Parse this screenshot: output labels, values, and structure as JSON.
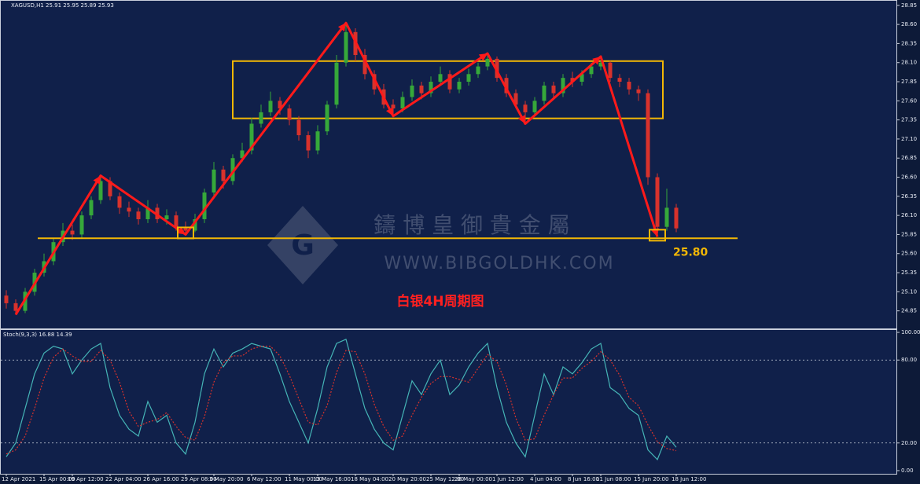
{
  "chart_data": [
    {
      "type": "candlestick",
      "title": "XAGUSD,H1 25.91 25.95 25.89 25.93",
      "up_color": "#36a83a",
      "down_color": "#d8322c",
      "categories": [
        "12 Apr 2021",
        null,
        null,
        null,
        "15 Apr 00:00",
        null,
        null,
        "19 Apr 12:00",
        null,
        null,
        null,
        "22 Apr 04:00",
        null,
        null,
        null,
        "26 Apr 16:00",
        null,
        null,
        null,
        "29 Apr 08:00",
        null,
        null,
        "3 May 20:00",
        null,
        null,
        null,
        "6 May 12:00",
        null,
        null,
        null,
        "11 May 00:00",
        null,
        null,
        "13 May 16:00",
        null,
        null,
        null,
        "18 May 04:00",
        null,
        null,
        null,
        "20 May 20:00",
        null,
        null,
        null,
        "25 May 12:00",
        null,
        null,
        "28 May 00:00",
        null,
        null,
        null,
        "1 Jun 12:00",
        null,
        null,
        null,
        "4 Jun 04:00",
        null,
        null,
        null,
        "8 Jun 16:00",
        null,
        null,
        "11 Jun 08:00",
        null,
        null,
        null,
        "15 Jun 20:00",
        null,
        null,
        null,
        "18 Jun 12:00",
        null
      ],
      "ohlc": [
        [
          25.05,
          25.12,
          24.88,
          24.95
        ],
        [
          24.95,
          25.0,
          24.8,
          24.85
        ],
        [
          24.85,
          25.15,
          24.82,
          25.1
        ],
        [
          25.1,
          25.4,
          25.05,
          25.35
        ],
        [
          25.35,
          25.6,
          25.3,
          25.5
        ],
        [
          25.5,
          25.8,
          25.45,
          25.75
        ],
        [
          25.75,
          26.0,
          25.7,
          25.9
        ],
        [
          25.9,
          25.98,
          25.78,
          25.85
        ],
        [
          25.85,
          26.15,
          25.8,
          26.1
        ],
        [
          26.1,
          26.35,
          26.05,
          26.3
        ],
        [
          26.3,
          26.62,
          26.25,
          26.55
        ],
        [
          26.55,
          26.6,
          26.3,
          26.35
        ],
        [
          26.35,
          26.4,
          26.12,
          26.2
        ],
        [
          26.2,
          26.28,
          26.08,
          26.15
        ],
        [
          26.15,
          26.2,
          25.98,
          26.05
        ],
        [
          26.05,
          26.3,
          26.0,
          26.2
        ],
        [
          26.2,
          26.25,
          26.0,
          26.05
        ],
        [
          26.05,
          26.18,
          25.98,
          26.1
        ],
        [
          26.1,
          26.15,
          25.9,
          25.95
        ],
        [
          25.95,
          26.02,
          25.85,
          25.9
        ],
        [
          25.9,
          26.12,
          25.88,
          26.05
        ],
        [
          26.05,
          26.45,
          26.0,
          26.4
        ],
        [
          26.4,
          26.8,
          26.35,
          26.7
        ],
        [
          26.7,
          26.75,
          26.45,
          26.55
        ],
        [
          26.55,
          26.9,
          26.5,
          26.85
        ],
        [
          26.85,
          27.05,
          26.8,
          26.95
        ],
        [
          26.95,
          27.38,
          26.9,
          27.3
        ],
        [
          27.3,
          27.55,
          27.25,
          27.45
        ],
        [
          27.45,
          27.72,
          27.4,
          27.6
        ],
        [
          27.6,
          27.65,
          27.42,
          27.5
        ],
        [
          27.5,
          27.55,
          27.28,
          27.35
        ],
        [
          27.35,
          27.4,
          27.08,
          27.15
        ],
        [
          27.15,
          27.2,
          26.85,
          26.95
        ],
        [
          26.95,
          27.28,
          26.9,
          27.2
        ],
        [
          27.2,
          27.6,
          27.15,
          27.55
        ],
        [
          27.55,
          28.2,
          27.5,
          28.1
        ],
        [
          28.1,
          28.62,
          28.05,
          28.5
        ],
        [
          28.5,
          28.55,
          28.12,
          28.2
        ],
        [
          28.2,
          28.28,
          27.88,
          27.95
        ],
        [
          27.95,
          28.0,
          27.68,
          27.75
        ],
        [
          27.75,
          27.82,
          27.5,
          27.55
        ],
        [
          27.55,
          27.62,
          27.4,
          27.5
        ],
        [
          27.5,
          27.72,
          27.45,
          27.65
        ],
        [
          27.65,
          27.88,
          27.6,
          27.8
        ],
        [
          27.8,
          27.85,
          27.62,
          27.7
        ],
        [
          27.7,
          27.92,
          27.65,
          27.85
        ],
        [
          27.85,
          28.05,
          27.8,
          27.95
        ],
        [
          27.95,
          28.0,
          27.7,
          27.75
        ],
        [
          27.75,
          27.9,
          27.7,
          27.85
        ],
        [
          27.85,
          28.02,
          27.8,
          27.95
        ],
        [
          27.95,
          28.1,
          27.9,
          28.05
        ],
        [
          28.05,
          28.22,
          28.0,
          28.15
        ],
        [
          28.15,
          28.18,
          27.85,
          27.9
        ],
        [
          27.9,
          27.95,
          27.65,
          27.7
        ],
        [
          27.7,
          27.75,
          27.5,
          27.55
        ],
        [
          27.55,
          27.6,
          27.3,
          27.45
        ],
        [
          27.45,
          27.65,
          27.4,
          27.6
        ],
        [
          27.6,
          27.85,
          27.55,
          27.8
        ],
        [
          27.8,
          27.85,
          27.62,
          27.7
        ],
        [
          27.7,
          27.95,
          27.65,
          27.9
        ],
        [
          27.9,
          27.98,
          27.78,
          27.85
        ],
        [
          27.85,
          28.0,
          27.8,
          27.95
        ],
        [
          27.95,
          28.1,
          27.9,
          28.05
        ],
        [
          28.05,
          28.18,
          28.0,
          28.1
        ],
        [
          28.1,
          28.12,
          27.85,
          27.9
        ],
        [
          27.9,
          27.95,
          27.78,
          27.85
        ],
        [
          27.85,
          27.9,
          27.68,
          27.75
        ],
        [
          27.75,
          27.8,
          27.6,
          27.7
        ],
        [
          27.7,
          27.75,
          26.5,
          26.6
        ],
        [
          26.6,
          26.65,
          25.82,
          25.95
        ],
        [
          25.95,
          26.45,
          25.9,
          26.2
        ],
        [
          26.2,
          26.25,
          25.88,
          25.93
        ]
      ],
      "ylim": [
        24.62,
        28.92
      ],
      "yticks": [
        28.85,
        {
          "value": 28.6,
          "label": "28.60"
        },
        28.35,
        {
          "value": 28.1,
          "label": "28.10"
        },
        27.85,
        {
          "value": 27.6,
          "label": "27.60"
        },
        27.35,
        {
          "value": 27.1,
          "label": "27.10"
        },
        26.85,
        {
          "value": 26.6,
          "label": "26.60"
        },
        26.35,
        {
          "value": 26.1,
          "label": "26.10"
        },
        25.85,
        {
          "value": 25.6,
          "label": "25.60"
        },
        25.35,
        {
          "value": 25.1,
          "label": "25.10"
        },
        24.85
      ],
      "support": {
        "value": 25.8,
        "value_label": "25.80",
        "color": "#f2b705"
      },
      "channel": {
        "high": 28.12,
        "low": 27.37,
        "color": "#f2b705"
      },
      "zigzag_color": "#ff1a1a",
      "annotation": "白银4H周期图",
      "watermark": {
        "name": "鑄 博 皇 御 貴 金 屬",
        "url": "WWW.BIBGOLDHK.COM"
      }
    },
    {
      "type": "line",
      "title": "Stoch(9,3,3) 16.88 14.39",
      "ylim": [
        -2.3,
        102.3
      ],
      "yticks": [
        {
          "value": 100,
          "label": "100.00"
        },
        {
          "value": 80,
          "label": "80.00"
        },
        {
          "value": 20,
          "label": "20.00"
        },
        {
          "value": 0,
          "label": "0.00"
        }
      ],
      "levels": [
        80,
        20
      ],
      "series": [
        {
          "name": "Main",
          "color": "#45b4b6",
          "values": [
            10,
            20,
            45,
            70,
            85,
            90,
            88,
            70,
            80,
            88,
            92,
            60,
            40,
            30,
            25,
            50,
            35,
            40,
            20,
            12,
            35,
            70,
            88,
            75,
            85,
            88,
            92,
            90,
            88,
            70,
            50,
            35,
            20,
            45,
            75,
            92,
            95,
            70,
            45,
            30,
            20,
            15,
            40,
            65,
            55,
            70,
            80,
            55,
            62,
            75,
            85,
            92,
            60,
            35,
            20,
            10,
            40,
            70,
            55,
            75,
            70,
            78,
            88,
            92,
            60,
            55,
            45,
            40,
            15,
            8,
            25,
            16.88
          ]
        },
        {
          "name": "Signal",
          "color": "#d8322c",
          "dashed": true,
          "values": [
            12,
            15,
            25,
            45,
            67,
            82,
            88,
            83,
            79,
            79,
            87,
            80,
            64,
            43,
            32,
            35,
            37,
            42,
            32,
            24,
            22,
            39,
            64,
            78,
            83,
            83,
            88,
            90,
            90,
            83,
            69,
            52,
            35,
            33,
            47,
            71,
            87,
            86,
            70,
            48,
            32,
            22,
            25,
            40,
            53,
            63,
            68,
            68,
            66,
            64,
            74,
            84,
            79,
            62,
            38,
            22,
            23,
            40,
            55,
            67,
            67,
            74,
            79,
            86,
            80,
            69,
            53,
            47,
            33,
            21,
            16,
            14.39
          ]
        }
      ]
    }
  ]
}
